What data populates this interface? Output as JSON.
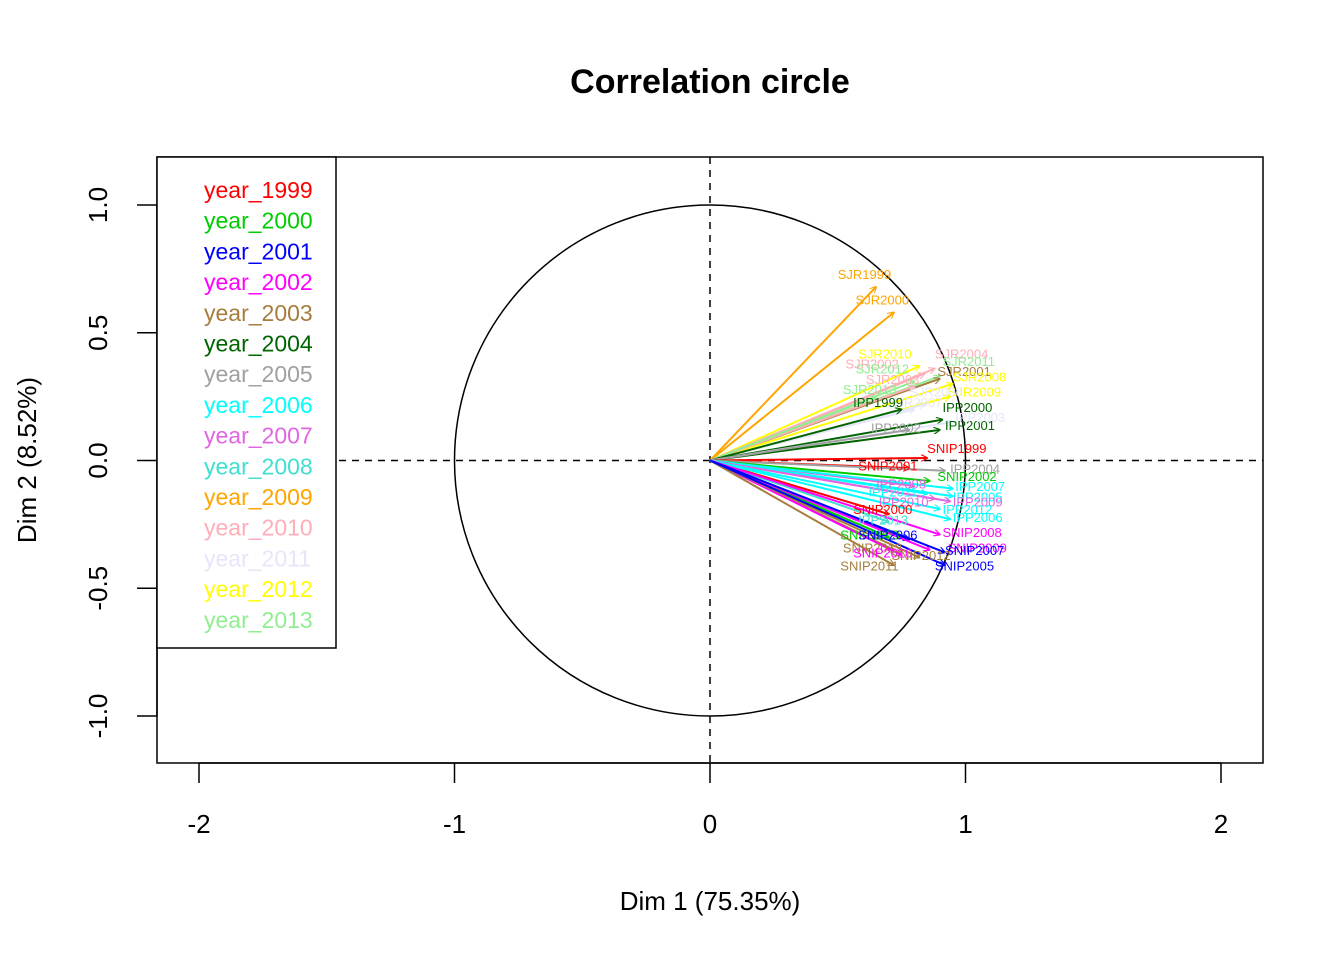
{
  "chart_data": {
    "type": "scatter",
    "subtype": "pca-correlation-circle",
    "title": "Correlation circle",
    "xlabel": "Dim 1 (75.35%)",
    "ylabel": "Dim 2 (8.52%)",
    "xlim": [
      -2.2,
      2.2
    ],
    "ylim": [
      -1.2,
      1.2
    ],
    "xticks": [
      {
        "value": -2,
        "label": "-2"
      },
      {
        "value": -1,
        "label": "-1"
      },
      {
        "value": 0,
        "label": "0"
      },
      {
        "value": 1,
        "label": "1"
      },
      {
        "value": 2,
        "label": "2"
      }
    ],
    "yticks": [
      {
        "value": -1,
        "label": "-1.0"
      },
      {
        "value": -0.5,
        "label": "-0.5"
      },
      {
        "value": 0,
        "label": "0.0"
      },
      {
        "value": 0.5,
        "label": "0.5"
      },
      {
        "value": 1,
        "label": "1.0"
      }
    ],
    "unit_circle": true,
    "reference_lines": [
      0
    ],
    "legend_position": "top-left",
    "legend": [
      {
        "label": "year_1999",
        "color": "#ff0000"
      },
      {
        "label": "year_2000",
        "color": "#00cd00"
      },
      {
        "label": "year_2001",
        "color": "#0000ff"
      },
      {
        "label": "year_2002",
        "color": "#ff00ff"
      },
      {
        "label": "year_2003",
        "color": "#a67d3d"
      },
      {
        "label": "year_2004",
        "color": "#006400"
      },
      {
        "label": "year_2005",
        "color": "#a0a0a0"
      },
      {
        "label": "year_2006",
        "color": "#00ffff"
      },
      {
        "label": "year_2007",
        "color": "#e066e0"
      },
      {
        "label": "year_2008",
        "color": "#40e0d0"
      },
      {
        "label": "year_2009",
        "color": "#ffa500"
      },
      {
        "label": "year_2010",
        "color": "#ffaeb9"
      },
      {
        "label": "year_2011",
        "color": "#e6e6fa"
      },
      {
        "label": "year_2012",
        "color": "#ffff00"
      },
      {
        "label": "year_2013",
        "color": "#90ee90"
      }
    ],
    "vectors": [
      {
        "name": "SJR1999",
        "x": 0.65,
        "y": 0.68,
        "lx": 0.5,
        "ly": 0.71,
        "color": "#ffa500"
      },
      {
        "name": "SJR2000",
        "x": 0.72,
        "y": 0.58,
        "lx": 0.57,
        "ly": 0.61,
        "color": "#ffa500"
      },
      {
        "name": "SJR2010",
        "x": 0.82,
        "y": 0.37,
        "lx": 0.58,
        "ly": 0.4,
        "color": "#ffff00"
      },
      {
        "name": "SJR2004",
        "x": 0.88,
        "y": 0.36,
        "lx": 0.88,
        "ly": 0.4,
        "color": "#ffaeb9"
      },
      {
        "name": "SJR2002",
        "x": 0.84,
        "y": 0.34,
        "lx": 0.53,
        "ly": 0.36,
        "color": "#ffaeb9"
      },
      {
        "name": "SJR2011",
        "x": 0.9,
        "y": 0.33,
        "lx": 0.91,
        "ly": 0.37,
        "color": "#90ee90"
      },
      {
        "name": "SJR2012",
        "x": 0.8,
        "y": 0.31,
        "lx": 0.57,
        "ly": 0.34,
        "color": "#90ee90"
      },
      {
        "name": "SJR2001",
        "x": 0.9,
        "y": 0.32,
        "lx": 0.89,
        "ly": 0.33,
        "color": "#a67d3d"
      },
      {
        "name": "SJR2008",
        "x": 0.95,
        "y": 0.3,
        "lx": 0.95,
        "ly": 0.31,
        "color": "#ffff00"
      },
      {
        "name": "SJR2003",
        "x": 0.8,
        "y": 0.29,
        "lx": 0.61,
        "ly": 0.3,
        "color": "#ffaeb9"
      },
      {
        "name": "SJR2009",
        "x": 0.94,
        "y": 0.25,
        "lx": 0.93,
        "ly": 0.25,
        "color": "#ffff00"
      },
      {
        "name": "SJR2013",
        "x": 0.65,
        "y": 0.25,
        "lx": 0.52,
        "ly": 0.26,
        "color": "#90ee90"
      },
      {
        "name": "SJR2006",
        "x": 0.84,
        "y": 0.22,
        "lx": 0.78,
        "ly": 0.25,
        "color": "#e6e6fa"
      },
      {
        "name": "SJR2007",
        "x": 0.8,
        "y": 0.2,
        "lx": 0.7,
        "ly": 0.21,
        "color": "#e6e6fa"
      },
      {
        "name": "IPP1999",
        "x": 0.75,
        "y": 0.2,
        "lx": 0.56,
        "ly": 0.21,
        "color": "#006400"
      },
      {
        "name": "IPP2000",
        "x": 0.91,
        "y": 0.16,
        "lx": 0.91,
        "ly": 0.19,
        "color": "#006400"
      },
      {
        "name": "IPP2001",
        "x": 0.9,
        "y": 0.12,
        "lx": 0.92,
        "ly": 0.12,
        "color": "#006400"
      },
      {
        "name": "IPP2003",
        "x": 0.95,
        "y": 0.15,
        "lx": 0.96,
        "ly": 0.15,
        "color": "#e6e6fa"
      },
      {
        "name": "IPP2002",
        "x": 0.78,
        "y": 0.12,
        "lx": 0.63,
        "ly": 0.11,
        "color": "#a0a0a0"
      },
      {
        "name": "SNIP1999",
        "x": 0.85,
        "y": 0.01,
        "lx": 0.85,
        "ly": 0.03,
        "color": "#ff0000"
      },
      {
        "name": "SNIP2001",
        "x": 0.78,
        "y": -0.03,
        "lx": 0.58,
        "ly": -0.04,
        "color": "#ff0000"
      },
      {
        "name": "IPP2004",
        "x": 0.92,
        "y": -0.04,
        "lx": 0.94,
        "ly": -0.05,
        "color": "#a0a0a0"
      },
      {
        "name": "SNIP2002",
        "x": 0.86,
        "y": -0.08,
        "lx": 0.89,
        "ly": -0.08,
        "color": "#00cd00"
      },
      {
        "name": "IPP2008",
        "x": 0.8,
        "y": -0.1,
        "lx": 0.65,
        "ly": -0.11,
        "color": "#e066e0"
      },
      {
        "name": "IPP2007",
        "x": 0.95,
        "y": -0.11,
        "lx": 0.96,
        "ly": -0.12,
        "color": "#00ffff"
      },
      {
        "name": "IPP2011",
        "x": 0.85,
        "y": -0.13,
        "lx": 0.62,
        "ly": -0.14,
        "color": "#00ffff"
      },
      {
        "name": "IPP2005",
        "x": 0.95,
        "y": -0.14,
        "lx": 0.95,
        "ly": -0.16,
        "color": "#00ffff"
      },
      {
        "name": "IPP2010",
        "x": 0.88,
        "y": -0.15,
        "lx": 0.66,
        "ly": -0.18,
        "color": "#e066e0"
      },
      {
        "name": "IPP2009",
        "x": 0.94,
        "y": -0.16,
        "lx": 0.95,
        "ly": -0.18,
        "color": "#e066e0"
      },
      {
        "name": "IPP2012",
        "x": 0.9,
        "y": -0.19,
        "lx": 0.91,
        "ly": -0.21,
        "color": "#00ffff"
      },
      {
        "name": "SNIP2000",
        "x": 0.7,
        "y": -0.21,
        "lx": 0.56,
        "ly": -0.21,
        "color": "#ff0000"
      },
      {
        "name": "IPP2006",
        "x": 0.94,
        "y": -0.23,
        "lx": 0.95,
        "ly": -0.24,
        "color": "#00ffff"
      },
      {
        "name": "IPP2013",
        "x": 0.7,
        "y": -0.24,
        "lx": 0.58,
        "ly": -0.25,
        "color": "#40e0d0"
      },
      {
        "name": "SNIP2008",
        "x": 0.9,
        "y": -0.29,
        "lx": 0.91,
        "ly": -0.3,
        "color": "#ff00ff"
      },
      {
        "name": "SNIP2003",
        "x": 0.7,
        "y": -0.3,
        "lx": 0.51,
        "ly": -0.31,
        "color": "#00cd00"
      },
      {
        "name": "SNIP2006",
        "x": 0.78,
        "y": -0.31,
        "lx": 0.58,
        "ly": -0.31,
        "color": "#0000ff"
      },
      {
        "name": "SNIP2013",
        "x": 0.72,
        "y": -0.35,
        "lx": 0.52,
        "ly": -0.36,
        "color": "#a67d3d"
      },
      {
        "name": "SNIP2009",
        "x": 0.86,
        "y": -0.35,
        "lx": 0.93,
        "ly": -0.36,
        "color": "#ff00ff"
      },
      {
        "name": "SNIP2007",
        "x": 0.92,
        "y": -0.36,
        "lx": 0.92,
        "ly": -0.37,
        "color": "#0000ff"
      },
      {
        "name": "SNIP2010",
        "x": 0.75,
        "y": -0.37,
        "lx": 0.56,
        "ly": -0.38,
        "color": "#ff00ff"
      },
      {
        "name": "SNIP2012",
        "x": 0.82,
        "y": -0.38,
        "lx": 0.71,
        "ly": -0.39,
        "color": "#a67d3d"
      },
      {
        "name": "SNIP2011",
        "x": 0.72,
        "y": -0.41,
        "lx": 0.51,
        "ly": -0.43,
        "color": "#a67d3d"
      },
      {
        "name": "SNIP2005",
        "x": 0.92,
        "y": -0.41,
        "lx": 0.88,
        "ly": -0.43,
        "color": "#0000ff"
      }
    ]
  }
}
